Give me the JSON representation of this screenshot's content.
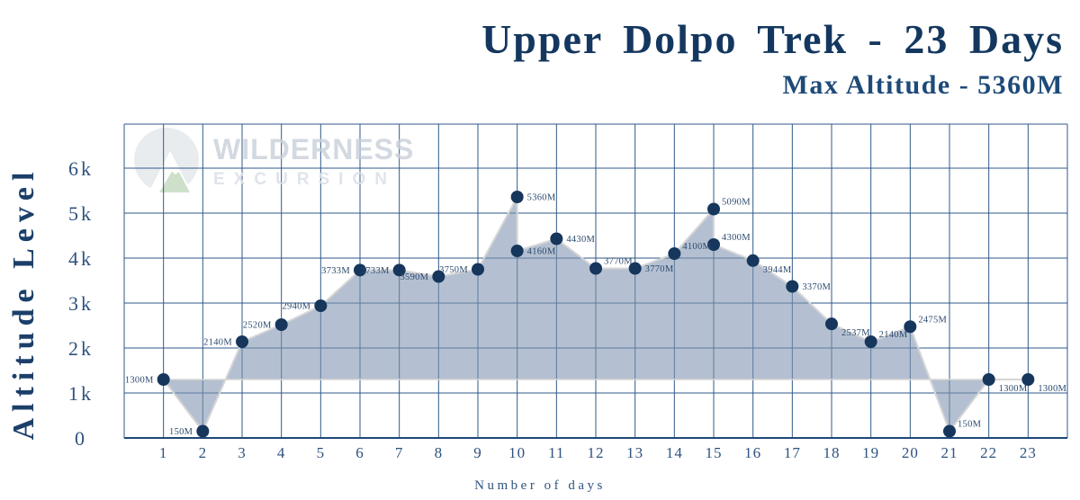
{
  "header": {
    "title": "Upper Dolpo Trek - 23 Days",
    "subtitle": "Max Altitude - 5360M"
  },
  "watermark": {
    "brand": "WILDERNESS",
    "brand_sub": "EXCURSION"
  },
  "chart_data": {
    "type": "area",
    "title": "Upper Dolpo Trek - 23 Days",
    "subtitle": "Max Altitude - 5360M",
    "xlabel": "Number of days",
    "ylabel": "Altitude Level",
    "x_ticks": [
      "1",
      "2",
      "3",
      "4",
      "5",
      "6",
      "7",
      "8",
      "9",
      "10",
      "11",
      "12",
      "13",
      "14",
      "15",
      "16",
      "17",
      "18",
      "19",
      "20",
      "21",
      "22",
      "23"
    ],
    "y_ticks": [
      {
        "label": "0",
        "value": 0
      },
      {
        "label": "1k",
        "value": 1000
      },
      {
        "label": "2k",
        "value": 2000
      },
      {
        "label": "3k",
        "value": 3000
      },
      {
        "label": "4k",
        "value": 4000
      },
      {
        "label": "5k",
        "value": 5000
      },
      {
        "label": "6k",
        "value": 6000
      }
    ],
    "xlim": [
      0,
      24
    ],
    "ylim": [
      0,
      6980
    ],
    "grid": true,
    "legend": false,
    "fill_to_value": 1300,
    "max_altitude_m": 5360,
    "points": [
      {
        "day": 1,
        "altitude": 1300,
        "label": "1300M",
        "label_placement": "left"
      },
      {
        "day": 2,
        "altitude": 150,
        "label": "150M",
        "label_placement": "left"
      },
      {
        "day": 3,
        "altitude": 2140,
        "label": "2140M",
        "label_placement": "left"
      },
      {
        "day": 4,
        "altitude": 2520,
        "label": "2520M",
        "label_placement": "left"
      },
      {
        "day": 5,
        "altitude": 2940,
        "label": "2940M",
        "label_placement": "left"
      },
      {
        "day": 6,
        "altitude": 3733,
        "label": "3733M",
        "label_placement": "left"
      },
      {
        "day": 7,
        "altitude": 3733,
        "label": "3733M",
        "label_placement": "left"
      },
      {
        "day": 8,
        "altitude": 3590,
        "label": "3590M",
        "label_placement": "left"
      },
      {
        "day": 9,
        "altitude": 3750,
        "label": "3750M",
        "label_placement": "left"
      },
      {
        "day": 10,
        "altitude": 5360,
        "label": "5360M",
        "label_placement": "right"
      },
      {
        "day": 10,
        "altitude": 4160,
        "label": "4160M",
        "label_placement": "right"
      },
      {
        "day": 11,
        "altitude": 4430,
        "label": "4430M",
        "label_placement": "right"
      },
      {
        "day": 12,
        "altitude": 3770,
        "label": "3770M",
        "label_placement": "above-right"
      },
      {
        "day": 13,
        "altitude": 3770,
        "label": "3770M",
        "label_placement": "right"
      },
      {
        "day": 14,
        "altitude": 4100,
        "label": "4100M",
        "label_placement": "above-right"
      },
      {
        "day": 15,
        "altitude": 5090,
        "label": "5090M",
        "label_placement": "above-right"
      },
      {
        "day": 15,
        "altitude": 4300,
        "label": "4300M",
        "label_placement": "above-right"
      },
      {
        "day": 16,
        "altitude": 3944,
        "label": "3944M",
        "label_placement": "below-right"
      },
      {
        "day": 17,
        "altitude": 3370,
        "label": "3370M",
        "label_placement": "right"
      },
      {
        "day": 18,
        "altitude": 2537,
        "label": "2537M",
        "label_placement": "below-right"
      },
      {
        "day": 19,
        "altitude": 2140,
        "label": "2140M",
        "label_placement": "above-right"
      },
      {
        "day": 20,
        "altitude": 2475,
        "label": "2475M",
        "label_placement": "above-right"
      },
      {
        "day": 21,
        "altitude": 150,
        "label": "150M",
        "label_placement": "above-right"
      },
      {
        "day": 22,
        "altitude": 1300,
        "label": "1300M",
        "label_placement": "below-right"
      },
      {
        "day": 23,
        "altitude": 1300,
        "label": "1300M",
        "label_placement": "below-right"
      }
    ]
  },
  "colors": {
    "title_navy": "#14375f",
    "subtitle_navy": "#1d4a78",
    "axis_text": "#2e527e",
    "grid_line": "#2f5a88",
    "axis_line": "#1d4878",
    "point_fill": "#16365c",
    "data_line": "#d6d6d6",
    "area_fill": "rgba(125,147,176,0.58)",
    "data_label": "#2c4a6e",
    "watermark_gray": "#e9ecef",
    "watermark_green": "#cfe0ca"
  }
}
